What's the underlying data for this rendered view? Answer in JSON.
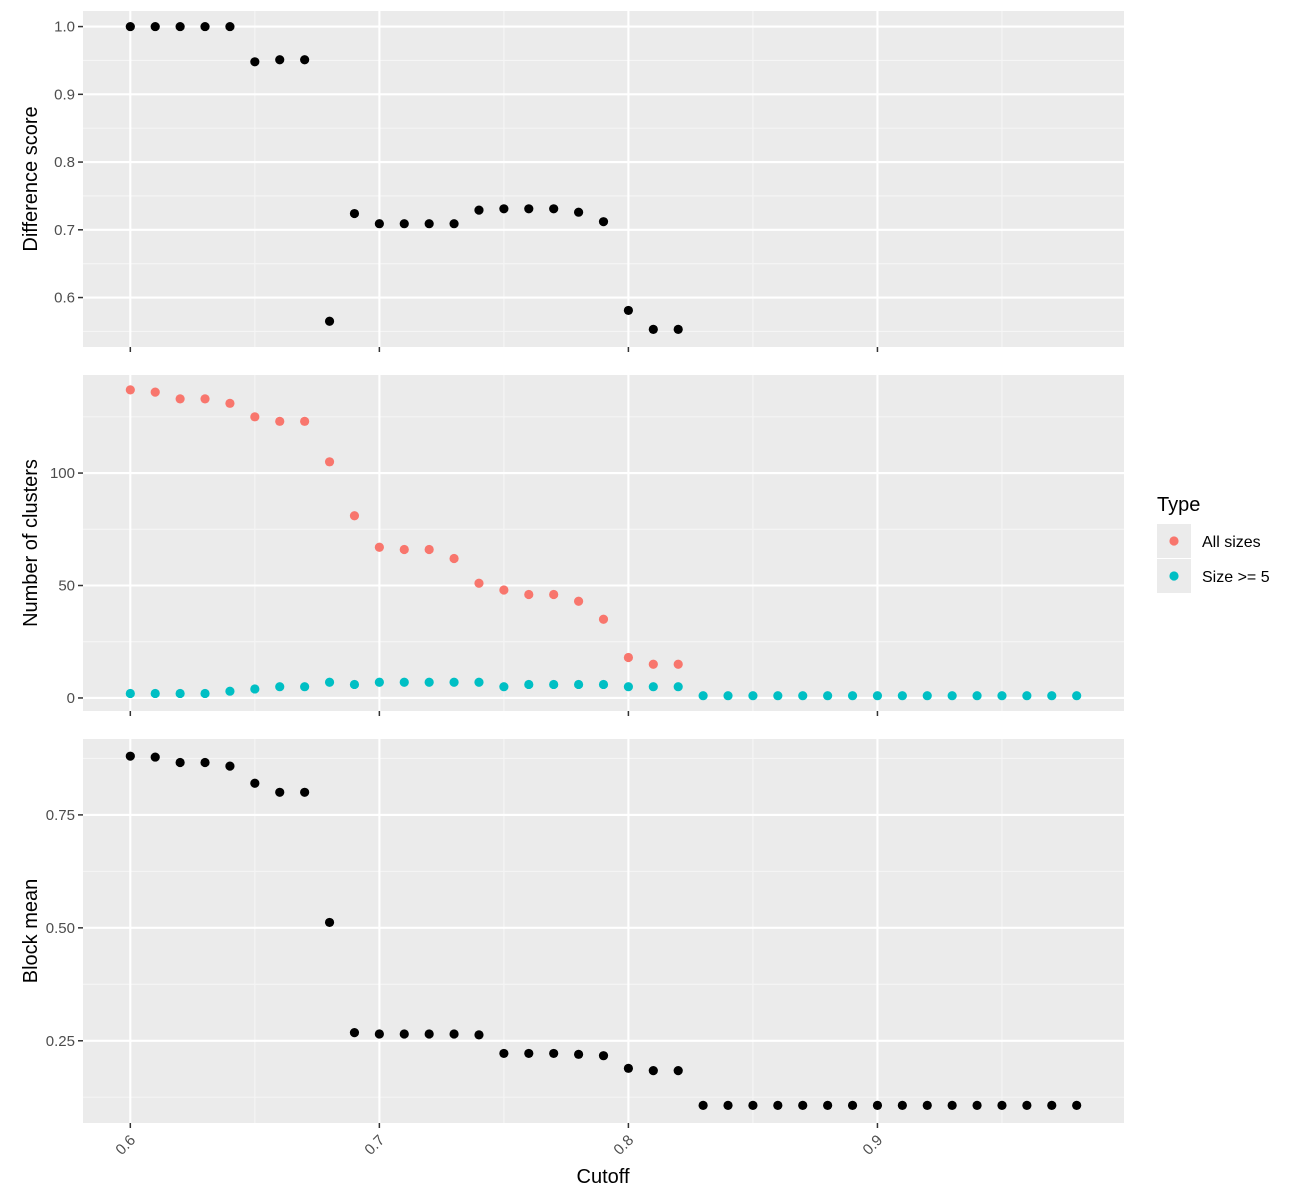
{
  "colors": {
    "panel_bg": "#ebebeb",
    "grid_major": "#ffffff",
    "grid_minor": "#f5f5f5",
    "point_black": "#000000",
    "all_sizes": "#f8766d",
    "size_ge_5": "#00bfc4",
    "tick": "#333333"
  },
  "x_axis": {
    "title": "Cutoff",
    "ticks": [
      0.6,
      0.7,
      0.8,
      0.9
    ],
    "tick_labels": [
      "0.6",
      "0.7",
      "0.8",
      "0.9"
    ]
  },
  "legend": {
    "title": "Type",
    "entries": [
      {
        "label": "All sizes",
        "color": "#f8766d"
      },
      {
        "label": "Size >= 5",
        "color": "#00bfc4"
      }
    ]
  },
  "chart_data": [
    {
      "type": "scatter",
      "ylabel": "Difference score",
      "xlim": [
        0.581,
        0.999
      ],
      "ylim": [
        0.527,
        1.023
      ],
      "yticks": [
        0.6,
        0.7,
        0.8,
        0.9,
        1.0
      ],
      "ytick_labels": [
        "0.6",
        "0.7",
        "0.8",
        "0.9",
        "1.0"
      ],
      "series": [
        {
          "color_key": "point_black",
          "x": [
            0.6,
            0.61,
            0.62,
            0.63,
            0.64,
            0.65,
            0.66,
            0.67,
            0.68,
            0.69,
            0.7,
            0.71,
            0.72,
            0.73,
            0.74,
            0.75,
            0.76,
            0.77,
            0.78,
            0.79,
            0.8,
            0.81,
            0.82
          ],
          "y": [
            1.0,
            1.0,
            1.0,
            1.0,
            1.0,
            0.948,
            0.951,
            0.951,
            0.565,
            0.724,
            0.709,
            0.709,
            0.709,
            0.709,
            0.729,
            0.731,
            0.731,
            0.731,
            0.726,
            0.712,
            0.581,
            0.553,
            0.553
          ]
        }
      ]
    },
    {
      "type": "scatter",
      "ylabel": "Number of clusters",
      "xlim": [
        0.581,
        0.999
      ],
      "ylim": [
        -5.8,
        143.6
      ],
      "yticks": [
        0,
        50,
        100
      ],
      "ytick_labels": [
        "0",
        "50",
        "100"
      ],
      "series": [
        {
          "name": "All sizes",
          "color_key": "all_sizes",
          "x": [
            0.6,
            0.61,
            0.62,
            0.63,
            0.64,
            0.65,
            0.66,
            0.67,
            0.68,
            0.69,
            0.7,
            0.71,
            0.72,
            0.73,
            0.74,
            0.75,
            0.76,
            0.77,
            0.78,
            0.79,
            0.8,
            0.81,
            0.82
          ],
          "y": [
            137,
            136,
            133,
            133,
            131,
            125,
            123,
            123,
            105,
            81,
            67,
            66,
            66,
            62,
            51,
            48,
            46,
            46,
            43,
            35,
            18,
            15,
            15
          ]
        },
        {
          "name": "Size >= 5",
          "color_key": "size_ge_5",
          "x": [
            0.6,
            0.61,
            0.62,
            0.63,
            0.64,
            0.65,
            0.66,
            0.67,
            0.68,
            0.69,
            0.7,
            0.71,
            0.72,
            0.73,
            0.74,
            0.75,
            0.76,
            0.77,
            0.78,
            0.79,
            0.8,
            0.81,
            0.82,
            0.83,
            0.84,
            0.85,
            0.86,
            0.87,
            0.88,
            0.89,
            0.9,
            0.91,
            0.92,
            0.93,
            0.94,
            0.95,
            0.96,
            0.97,
            0.98
          ],
          "y": [
            2,
            2,
            2,
            2,
            3,
            4,
            5,
            5,
            7,
            6,
            7,
            7,
            7,
            7,
            7,
            5,
            6,
            6,
            6,
            6,
            5,
            5,
            5,
            1,
            1,
            1,
            1,
            1,
            1,
            1,
            1,
            1,
            1,
            1,
            1,
            1,
            1,
            1,
            1
          ]
        }
      ]
    },
    {
      "type": "scatter",
      "ylabel": "Block mean",
      "xlim": [
        0.581,
        0.999
      ],
      "ylim": [
        0.068,
        0.918
      ],
      "yticks": [
        0.25,
        0.5,
        0.75
      ],
      "ytick_labels": [
        "0.25",
        "0.50",
        "0.75"
      ],
      "series": [
        {
          "color_key": "point_black",
          "x": [
            0.6,
            0.61,
            0.62,
            0.63,
            0.64,
            0.65,
            0.66,
            0.67,
            0.68,
            0.69,
            0.7,
            0.71,
            0.72,
            0.73,
            0.74,
            0.75,
            0.76,
            0.77,
            0.78,
            0.79,
            0.8,
            0.81,
            0.82,
            0.83,
            0.84,
            0.85,
            0.86,
            0.87,
            0.88,
            0.89,
            0.9,
            0.91,
            0.92,
            0.93,
            0.94,
            0.95,
            0.96,
            0.97,
            0.98
          ],
          "y": [
            0.88,
            0.878,
            0.866,
            0.866,
            0.858,
            0.82,
            0.8,
            0.8,
            0.512,
            0.268,
            0.265,
            0.265,
            0.265,
            0.265,
            0.263,
            0.222,
            0.222,
            0.222,
            0.22,
            0.217,
            0.189,
            0.184,
            0.184,
            0.107,
            0.107,
            0.107,
            0.107,
            0.107,
            0.107,
            0.107,
            0.107,
            0.107,
            0.107,
            0.107,
            0.107,
            0.107,
            0.107,
            0.107,
            0.107
          ]
        }
      ]
    }
  ]
}
